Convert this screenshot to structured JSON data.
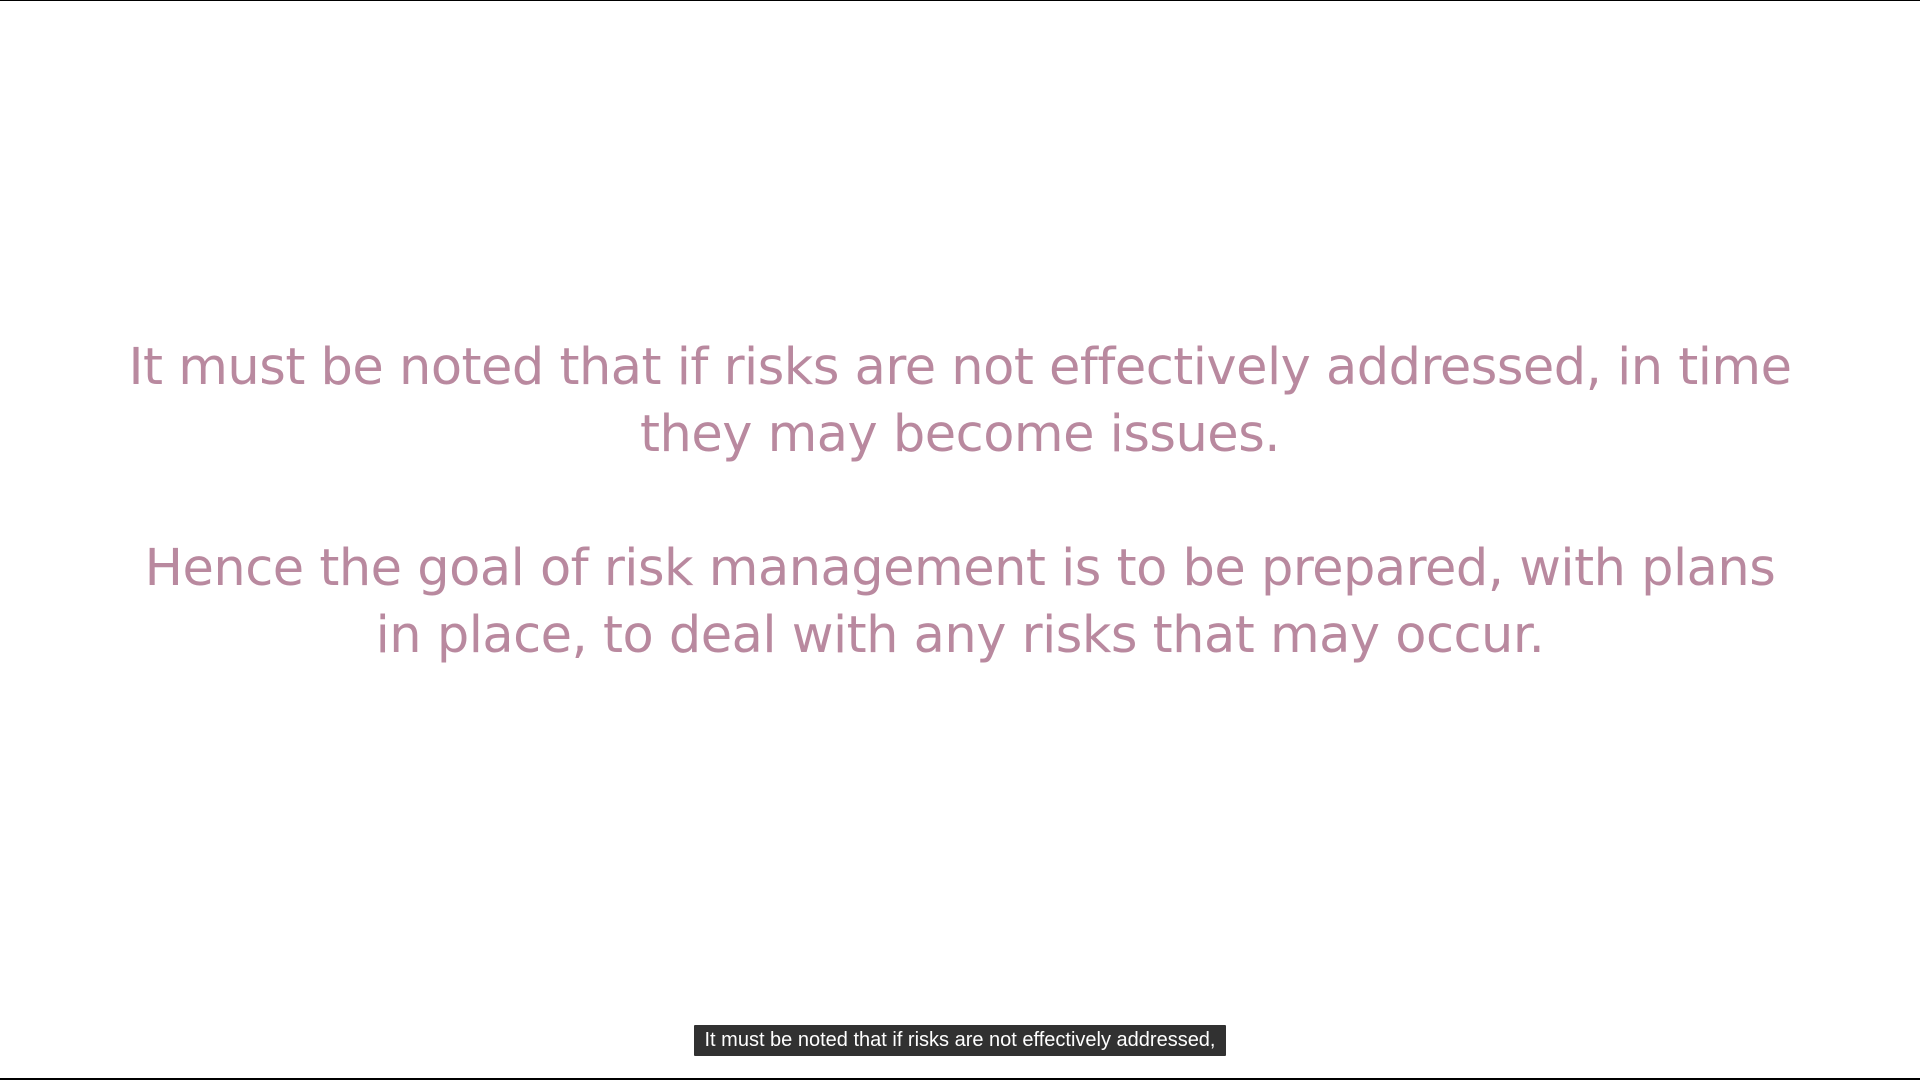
{
  "slide": {
    "paragraph_1": "It must be noted that if risks are not effectively addressed, in time they may become issues.",
    "paragraph_2": "Hence the goal of risk management is to be prepared, with plans in place, to deal with any risks that may occur.",
    "text_color": "#b9899f",
    "background_color": "#ffffff"
  },
  "captions": {
    "text": "It must be noted that if risks are not effectively addressed,"
  }
}
